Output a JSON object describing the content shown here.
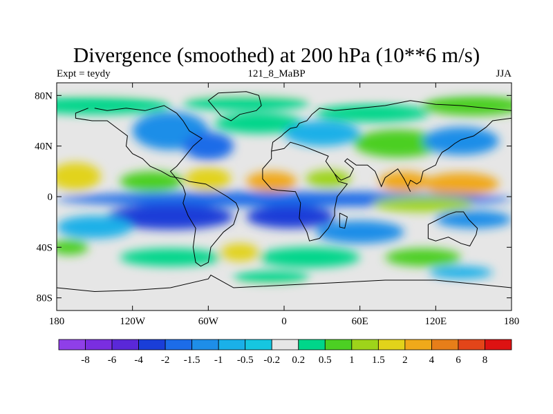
{
  "chart_data": {
    "type": "heatmap",
    "title": "Divergence (smoothed) at 200 hPa (10**6 m/s)",
    "subtitle_left": "Expt = teydy",
    "subtitle_center": "121_8_MaBP",
    "subtitle_right": "JJA",
    "x_ticks": [
      "180",
      "120W",
      "60W",
      "0",
      "60E",
      "120E",
      "180"
    ],
    "y_ticks": [
      "80N",
      "40N",
      "0",
      "40S",
      "80S"
    ],
    "xlim": [
      -180,
      180
    ],
    "ylim": [
      -90,
      90
    ],
    "colorbar_labels": [
      "-8",
      "-6",
      "-4",
      "-2",
      "-1.5",
      "-1",
      "-0.5",
      "-0.2",
      "0.2",
      "0.5",
      "1",
      "1.5",
      "2",
      "4",
      "6",
      "8"
    ],
    "colorbar_colors": [
      "#8f3fe8",
      "#7a2ee0",
      "#5a28d8",
      "#1a3ed8",
      "#1c6ce8",
      "#1e8ee8",
      "#1ab0e8",
      "#16c6e0",
      "#e6e6e6",
      "#00d68a",
      "#4ccf23",
      "#9ed41a",
      "#e2d31a",
      "#f0a91a",
      "#e77e19",
      "#e34519",
      "#dd1212"
    ],
    "field": [
      {
        "lon": 0,
        "lat": 88,
        "w": 360,
        "h": 10,
        "level": 0
      },
      {
        "lon": -150,
        "lat": 72,
        "w": 120,
        "h": 14,
        "level": 1
      },
      {
        "lon": -30,
        "lat": 74,
        "w": 100,
        "h": 12,
        "level": 1
      },
      {
        "lon": 70,
        "lat": 66,
        "w": 90,
        "h": 14,
        "level": 1
      },
      {
        "lon": 150,
        "lat": 72,
        "w": 80,
        "h": 16,
        "level": 2
      },
      {
        "lon": -90,
        "lat": 52,
        "w": 60,
        "h": 30,
        "level": -3
      },
      {
        "lon": -60,
        "lat": 40,
        "w": 40,
        "h": 22,
        "level": -4
      },
      {
        "lon": -20,
        "lat": 58,
        "w": 70,
        "h": 16,
        "level": 1
      },
      {
        "lon": 30,
        "lat": 50,
        "w": 60,
        "h": 20,
        "level": -2
      },
      {
        "lon": 90,
        "lat": 42,
        "w": 70,
        "h": 22,
        "level": 2
      },
      {
        "lon": 140,
        "lat": 44,
        "w": 60,
        "h": 22,
        "level": -3
      },
      {
        "lon": -165,
        "lat": 16,
        "w": 40,
        "h": 22,
        "level": 4
      },
      {
        "lon": -105,
        "lat": 12,
        "w": 50,
        "h": 16,
        "level": 2
      },
      {
        "lon": -60,
        "lat": 14,
        "w": 36,
        "h": 18,
        "level": 4
      },
      {
        "lon": -10,
        "lat": 12,
        "w": 40,
        "h": 16,
        "level": 5
      },
      {
        "lon": 35,
        "lat": 14,
        "w": 36,
        "h": 14,
        "level": 3
      },
      {
        "lon": 95,
        "lat": 12,
        "w": 40,
        "h": 16,
        "level": 5
      },
      {
        "lon": 140,
        "lat": 10,
        "w": 60,
        "h": 18,
        "level": 5
      },
      {
        "lon": 0,
        "lat": -2,
        "w": 360,
        "h": 12,
        "level": -4
      },
      {
        "lon": -90,
        "lat": -16,
        "w": 100,
        "h": 20,
        "level": -5
      },
      {
        "lon": 5,
        "lat": -16,
        "w": 70,
        "h": 18,
        "level": -5
      },
      {
        "lon": 110,
        "lat": -6,
        "w": 80,
        "h": 12,
        "level": 3
      },
      {
        "lon": 150,
        "lat": -18,
        "w": 60,
        "h": 14,
        "level": -3
      },
      {
        "lon": -150,
        "lat": -24,
        "w": 60,
        "h": 18,
        "level": -2
      },
      {
        "lon": 60,
        "lat": -28,
        "w": 70,
        "h": 18,
        "level": -3
      },
      {
        "lon": -170,
        "lat": -40,
        "w": 30,
        "h": 12,
        "level": 2
      },
      {
        "lon": -35,
        "lat": -44,
        "w": 30,
        "h": 14,
        "level": 4
      },
      {
        "lon": -90,
        "lat": -48,
        "w": 80,
        "h": 14,
        "level": 1
      },
      {
        "lon": 20,
        "lat": -48,
        "w": 80,
        "h": 16,
        "level": 1
      },
      {
        "lon": 110,
        "lat": -48,
        "w": 60,
        "h": 14,
        "level": 2
      },
      {
        "lon": 140,
        "lat": -60,
        "w": 50,
        "h": 10,
        "level": -2
      },
      {
        "lon": -10,
        "lat": -64,
        "w": 60,
        "h": 10,
        "level": 1
      },
      {
        "lon": 0,
        "lat": -80,
        "w": 360,
        "h": 14,
        "level": 0
      }
    ]
  },
  "coastlines": [
    [
      [
        -150,
        70
      ],
      [
        -140,
        68
      ],
      [
        -125,
        70
      ],
      [
        -110,
        68
      ],
      [
        -95,
        72
      ],
      [
        -85,
        66
      ],
      [
        -80,
        60
      ],
      [
        -75,
        52
      ],
      [
        -65,
        46
      ],
      [
        -72,
        40
      ],
      [
        -80,
        30
      ],
      [
        -85,
        24
      ],
      [
        -90,
        20
      ],
      [
        -85,
        14
      ],
      [
        -80,
        8
      ],
      [
        -78,
        2
      ],
      [
        -80,
        -5
      ],
      [
        -76,
        -15
      ],
      [
        -70,
        -25
      ],
      [
        -72,
        -40
      ],
      [
        -70,
        -52
      ],
      [
        -66,
        -55
      ],
      [
        -60,
        -52
      ],
      [
        -58,
        -40
      ],
      [
        -48,
        -28
      ],
      [
        -40,
        -22
      ],
      [
        -36,
        -10
      ],
      [
        -38,
        -5
      ],
      [
        -45,
        0
      ],
      [
        -55,
        6
      ],
      [
        -62,
        10
      ],
      [
        -75,
        12
      ],
      [
        -80,
        14
      ],
      [
        -90,
        16
      ],
      [
        -97,
        20
      ],
      [
        -106,
        24
      ],
      [
        -112,
        30
      ],
      [
        -120,
        34
      ],
      [
        -125,
        40
      ],
      [
        -124,
        48
      ],
      [
        -132,
        54
      ],
      [
        -140,
        60
      ],
      [
        -152,
        60
      ],
      [
        -165,
        62
      ],
      [
        -165,
        66
      ],
      [
        -155,
        70
      ]
    ],
    [
      [
        -10,
        36
      ],
      [
        0,
        38
      ],
      [
        5,
        43
      ],
      [
        15,
        40
      ],
      [
        25,
        36
      ],
      [
        35,
        32
      ],
      [
        33,
        28
      ],
      [
        40,
        18
      ],
      [
        43,
        12
      ],
      [
        50,
        10
      ],
      [
        42,
        0
      ],
      [
        40,
        -10
      ],
      [
        40,
        -15
      ],
      [
        35,
        -25
      ],
      [
        28,
        -33
      ],
      [
        20,
        -35
      ],
      [
        18,
        -28
      ],
      [
        12,
        -17
      ],
      [
        13,
        -5
      ],
      [
        9,
        4
      ],
      [
        -5,
        5
      ],
      [
        -10,
        6
      ],
      [
        -17,
        14
      ],
      [
        -17,
        22
      ],
      [
        -10,
        30
      ],
      [
        -10,
        36
      ]
    ],
    [
      [
        -10,
        36
      ],
      [
        -9,
        43
      ],
      [
        -2,
        48
      ],
      [
        0,
        50
      ],
      [
        5,
        54
      ],
      [
        10,
        55
      ],
      [
        12,
        58
      ],
      [
        18,
        60
      ],
      [
        22,
        65
      ],
      [
        28,
        70
      ],
      [
        40,
        68
      ],
      [
        60,
        70
      ],
      [
        80,
        72
      ],
      [
        100,
        76
      ],
      [
        120,
        73
      ],
      [
        140,
        72
      ],
      [
        160,
        70
      ],
      [
        180,
        68
      ]
    ],
    [
      [
        180,
        62
      ],
      [
        165,
        60
      ],
      [
        160,
        55
      ],
      [
        150,
        48
      ],
      [
        140,
        45
      ],
      [
        135,
        42
      ],
      [
        130,
        38
      ],
      [
        125,
        35
      ],
      [
        122,
        30
      ],
      [
        120,
        25
      ],
      [
        110,
        20
      ],
      [
        108,
        12
      ],
      [
        105,
        10
      ],
      [
        100,
        13
      ],
      [
        98,
        8
      ],
      [
        100,
        4
      ],
      [
        95,
        14
      ],
      [
        90,
        22
      ],
      [
        80,
        15
      ],
      [
        77,
        8
      ],
      [
        72,
        20
      ],
      [
        66,
        25
      ],
      [
        57,
        25
      ],
      [
        50,
        30
      ],
      [
        48,
        28
      ],
      [
        55,
        22
      ],
      [
        52,
        16
      ],
      [
        45,
        13
      ],
      [
        40,
        18
      ]
    ],
    [
      [
        114,
        -22
      ],
      [
        114,
        -33
      ],
      [
        120,
        -35
      ],
      [
        130,
        -32
      ],
      [
        140,
        -37
      ],
      [
        147,
        -39
      ],
      [
        152,
        -30
      ],
      [
        153,
        -25
      ],
      [
        146,
        -18
      ],
      [
        142,
        -12
      ],
      [
        136,
        -12
      ],
      [
        130,
        -14
      ],
      [
        122,
        -18
      ],
      [
        114,
        -22
      ]
    ],
    [
      [
        -180,
        -72
      ],
      [
        -150,
        -75
      ],
      [
        -120,
        -74
      ],
      [
        -90,
        -72
      ],
      [
        -60,
        -65
      ],
      [
        -58,
        -62
      ],
      [
        -40,
        -72
      ],
      [
        0,
        -70
      ],
      [
        40,
        -68
      ],
      [
        80,
        -66
      ],
      [
        120,
        -66
      ],
      [
        160,
        -70
      ],
      [
        180,
        -72
      ]
    ],
    [
      [
        -52,
        82
      ],
      [
        -30,
        83
      ],
      [
        -20,
        80
      ],
      [
        -18,
        72
      ],
      [
        -22,
        68
      ],
      [
        -35,
        65
      ],
      [
        -42,
        60
      ],
      [
        -50,
        64
      ],
      [
        -55,
        70
      ],
      [
        -60,
        76
      ],
      [
        -52,
        82
      ]
    ],
    [
      [
        44,
        -13
      ],
      [
        50,
        -16
      ],
      [
        48,
        -25
      ],
      [
        44,
        -24
      ],
      [
        44,
        -13
      ]
    ]
  ]
}
